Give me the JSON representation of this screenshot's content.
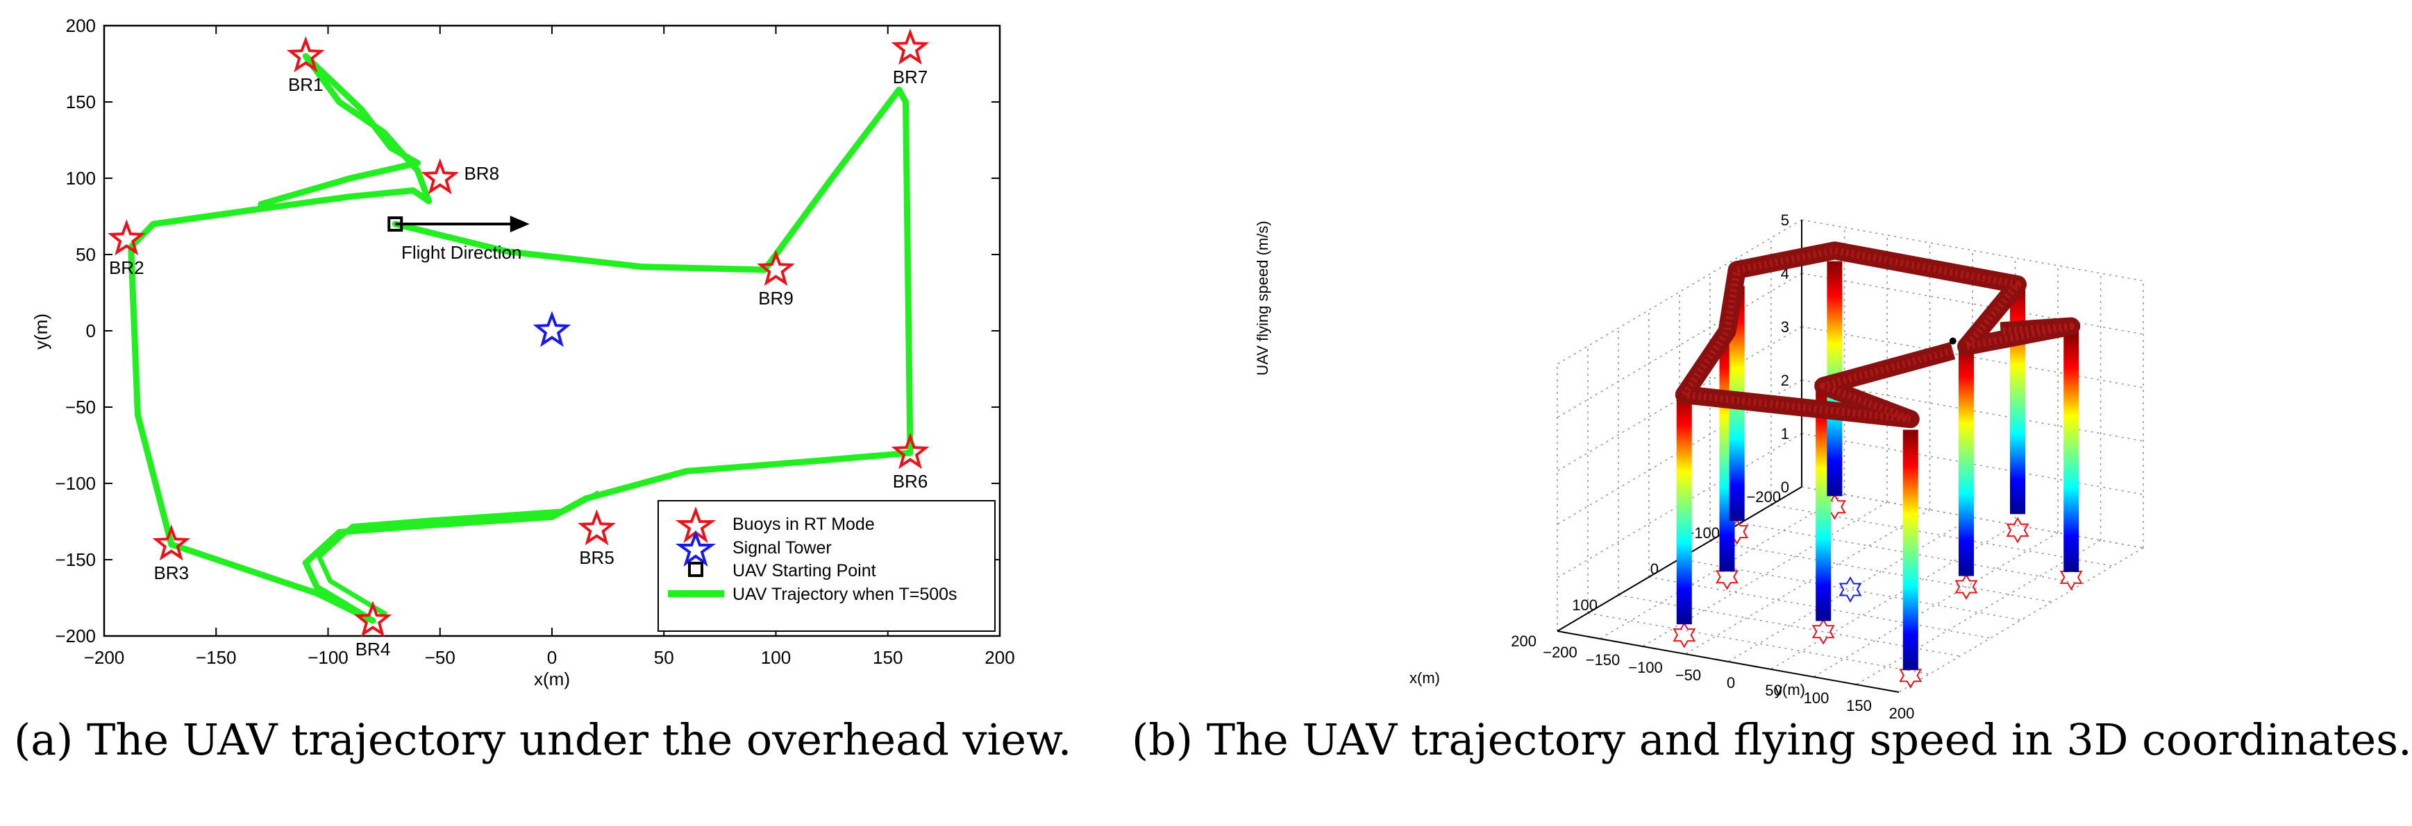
{
  "charts": {
    "a": {
      "xlabel": "x(m)",
      "ylabel": "y(m)",
      "xticks": [
        "−200",
        "−150",
        "−100",
        "−50",
        "0",
        "50",
        "100",
        "150",
        "200"
      ],
      "yticks": [
        "200",
        "150",
        "100",
        "50",
        "0",
        "−50",
        "−100",
        "−150",
        "−200"
      ],
      "annotation": "Flight Direction",
      "legend": [
        {
          "label": "Buoys in RT Mode",
          "color": "#e8141c"
        },
        {
          "label": "Signal Tower",
          "color": "#1a1ae6"
        },
        {
          "label": "UAV Starting Point",
          "color": "#000000"
        },
        {
          "label": "UAV Trajectory when T=500s",
          "color": "#22ee22"
        }
      ]
    },
    "b": {
      "zlabel": "UAV flying speed (m/s)",
      "xlabel": "x(m)",
      "ylabel": "y(m)",
      "zticks": [
        "0",
        "1",
        "2",
        "3",
        "4",
        "5"
      ],
      "xticks": [
        "−200",
        "−100",
        "0",
        "100",
        "200"
      ],
      "yticks": [
        "−200",
        "−150",
        "−100",
        "−50",
        "0",
        "50",
        "100",
        "150",
        "200"
      ]
    }
  },
  "captions": {
    "a": "(a)  The UAV trajectory under the overhead view.",
    "b": "(b)  The UAV trajectory and flying speed in 3D coordinates."
  },
  "chart_data": [
    {
      "type": "line",
      "title": "",
      "xlabel": "x(m)",
      "ylabel": "y(m)",
      "xlim": [
        -200,
        200
      ],
      "ylim": [
        -200,
        200
      ],
      "grid": false,
      "legend_position": "bottom-right",
      "buoys": [
        {
          "name": "BR1",
          "x": -110,
          "y": 180
        },
        {
          "name": "BR2",
          "x": -190,
          "y": 60
        },
        {
          "name": "BR3",
          "x": -170,
          "y": -140
        },
        {
          "name": "BR4",
          "x": -80,
          "y": -190
        },
        {
          "name": "BR5",
          "x": 20,
          "y": -130
        },
        {
          "name": "BR6",
          "x": 160,
          "y": -80
        },
        {
          "name": "BR7",
          "x": 160,
          "y": 185
        },
        {
          "name": "BR8",
          "x": -50,
          "y": 100
        },
        {
          "name": "BR9",
          "x": 100,
          "y": 40
        }
      ],
      "signal_tower": {
        "x": 0,
        "y": 0
      },
      "start_point": {
        "x": -70,
        "y": 70
      },
      "flight_direction": {
        "from": [
          -70,
          70
        ],
        "to": [
          -10,
          70
        ]
      },
      "trajectory": [
        [
          -70,
          70
        ],
        [
          -20,
          52
        ],
        [
          40,
          42
        ],
        [
          95,
          40
        ],
        [
          125,
          100
        ],
        [
          155,
          158
        ],
        [
          158,
          150
        ],
        [
          160,
          -80
        ],
        [
          120,
          -85
        ],
        [
          60,
          -92
        ],
        [
          15,
          -110
        ],
        [
          0,
          -122
        ],
        [
          -60,
          -128
        ],
        [
          -95,
          -132
        ],
        [
          -110,
          -152
        ],
        [
          -105,
          -168
        ],
        [
          -80,
          -190
        ],
        [
          -105,
          -172
        ],
        [
          -170,
          -140
        ],
        [
          -185,
          -55
        ],
        [
          -188,
          55
        ],
        [
          -178,
          70
        ],
        [
          -130,
          80
        ],
        [
          -90,
          88
        ],
        [
          -62,
          92
        ],
        [
          -55,
          85
        ],
        [
          -60,
          105
        ],
        [
          -75,
          130
        ],
        [
          -95,
          150
        ],
        [
          -110,
          180
        ],
        [
          -85,
          145
        ],
        [
          -72,
          120
        ],
        [
          -60,
          110
        ],
        [
          -90,
          100
        ],
        [
          -130,
          83
        ]
      ]
    },
    {
      "type": "line",
      "title": "",
      "zlabel": "UAV flying speed (m/s)",
      "xlabel": "x(m)",
      "ylabel": "y(m)",
      "zlim": [
        0,
        5
      ],
      "xlim": [
        -200,
        200
      ],
      "ylim": [
        -200,
        200
      ],
      "grid": true,
      "colormap": "jet",
      "trajectory_xyz": [
        [
          -70,
          70,
          4.2
        ],
        [
          100,
          40,
          4.6
        ],
        [
          160,
          185,
          4.8
        ],
        [
          160,
          -80,
          4.5
        ],
        [
          20,
          -130,
          4.6
        ],
        [
          -80,
          -190,
          4.9
        ],
        [
          -170,
          -140,
          4.8
        ],
        [
          -190,
          60,
          4.6
        ],
        [
          -50,
          100,
          4.5
        ],
        [
          -110,
          180,
          4.7
        ],
        [
          -130,
          83,
          4.2
        ]
      ],
      "speed_drops": [
        {
          "x": -110,
          "y": 180,
          "min_speed": 0.1
        },
        {
          "x": -190,
          "y": 60,
          "min_speed": 0.3
        },
        {
          "x": -50,
          "y": 100,
          "min_speed": 0.2
        },
        {
          "x": 100,
          "y": 40,
          "min_speed": 0.2
        },
        {
          "x": 160,
          "y": 185,
          "min_speed": 0.1
        },
        {
          "x": 160,
          "y": -80,
          "min_speed": 0.2
        },
        {
          "x": 20,
          "y": -130,
          "min_speed": 0.1
        },
        {
          "x": -80,
          "y": -190,
          "min_speed": 0.2
        },
        {
          "x": -170,
          "y": -140,
          "min_speed": 0.2
        }
      ]
    }
  ]
}
